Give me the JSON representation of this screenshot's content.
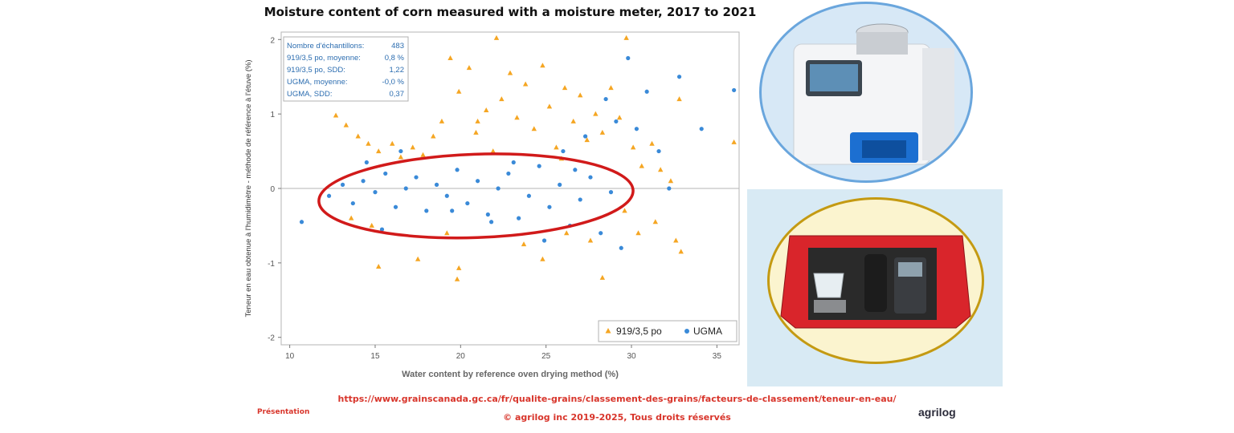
{
  "header": {
    "title": "Moisture content of corn measured with a moisture meter, 2017 to 2021"
  },
  "chart_data": {
    "type": "scatter",
    "title": "Moisture content of corn measured with a moisture meter, 2017 to 2021",
    "xlabel": "Water content by reference oven drying method (%)",
    "ylabel": "Teneur en eau obtenue à l'humidimètre - méthode de référence à l'étuve (%)",
    "xlim": [
      9.5,
      36.3
    ],
    "ylim": [
      -2.1,
      2.1
    ],
    "xticks": [
      10,
      15,
      20,
      25,
      30,
      35
    ],
    "yticks": [
      -2,
      -1,
      0,
      1,
      2
    ],
    "grid": false,
    "legend_position": "bottom-right",
    "series": [
      {
        "name": "919/3,5 po",
        "marker": "triangle",
        "color": "#f5a623",
        "points": [
          [
            12.7,
            0.98
          ],
          [
            13.3,
            0.85
          ],
          [
            14.0,
            0.7
          ],
          [
            14.6,
            0.6
          ],
          [
            15.2,
            0.5
          ],
          [
            16.0,
            0.6
          ],
          [
            16.5,
            0.42
          ],
          [
            17.2,
            0.55
          ],
          [
            17.8,
            0.45
          ],
          [
            18.4,
            0.7
          ],
          [
            18.9,
            0.9
          ],
          [
            19.4,
            1.75
          ],
          [
            19.9,
            1.3
          ],
          [
            20.5,
            1.62
          ],
          [
            20.9,
            0.75
          ],
          [
            21.5,
            1.05
          ],
          [
            21.9,
            0.5
          ],
          [
            22.4,
            1.2
          ],
          [
            22.9,
            1.55
          ],
          [
            23.3,
            0.95
          ],
          [
            23.8,
            1.4
          ],
          [
            24.3,
            0.8
          ],
          [
            24.8,
            1.65
          ],
          [
            25.2,
            1.1
          ],
          [
            25.6,
            0.55
          ],
          [
            26.1,
            1.35
          ],
          [
            26.6,
            0.9
          ],
          [
            27.0,
            1.25
          ],
          [
            27.4,
            0.65
          ],
          [
            27.9,
            1.0
          ],
          [
            28.3,
            0.75
          ],
          [
            28.8,
            1.35
          ],
          [
            29.3,
            0.95
          ],
          [
            29.7,
            2.02
          ],
          [
            30.1,
            0.55
          ],
          [
            30.6,
            0.3
          ],
          [
            31.2,
            0.6
          ],
          [
            31.7,
            0.25
          ],
          [
            32.3,
            0.1
          ],
          [
            32.8,
            1.2
          ],
          [
            36.0,
            0.62
          ],
          [
            22.1,
            2.02
          ],
          [
            15.2,
            -1.05
          ],
          [
            17.5,
            -0.95
          ],
          [
            19.9,
            -1.07
          ],
          [
            19.8,
            -1.22
          ],
          [
            13.6,
            -0.4
          ],
          [
            14.8,
            -0.5
          ],
          [
            19.2,
            -0.6
          ],
          [
            23.7,
            -0.75
          ],
          [
            24.8,
            -0.95
          ],
          [
            26.2,
            -0.6
          ],
          [
            27.6,
            -0.7
          ],
          [
            28.3,
            -1.2
          ],
          [
            29.6,
            -0.3
          ],
          [
            30.4,
            -0.6
          ],
          [
            31.4,
            -0.45
          ],
          [
            32.6,
            -0.7
          ],
          [
            32.9,
            -0.85
          ],
          [
            21.0,
            0.9
          ],
          [
            25.9,
            0.4
          ]
        ]
      },
      {
        "name": "UGMA",
        "marker": "circle",
        "color": "#3a8ad8",
        "points": [
          [
            10.7,
            -0.45
          ],
          [
            12.3,
            -0.1
          ],
          [
            13.1,
            0.05
          ],
          [
            13.7,
            -0.2
          ],
          [
            14.3,
            0.1
          ],
          [
            15.0,
            -0.05
          ],
          [
            15.6,
            0.2
          ],
          [
            16.2,
            -0.25
          ],
          [
            16.8,
            0.0
          ],
          [
            17.4,
            0.15
          ],
          [
            18.0,
            -0.3
          ],
          [
            18.6,
            0.05
          ],
          [
            19.2,
            -0.1
          ],
          [
            19.8,
            0.25
          ],
          [
            20.4,
            -0.2
          ],
          [
            21.0,
            0.1
          ],
          [
            21.6,
            -0.35
          ],
          [
            22.2,
            0.0
          ],
          [
            22.8,
            0.2
          ],
          [
            23.4,
            -0.4
          ],
          [
            24.0,
            -0.1
          ],
          [
            24.6,
            0.3
          ],
          [
            25.2,
            -0.25
          ],
          [
            25.8,
            0.05
          ],
          [
            26.4,
            -0.5
          ],
          [
            27.0,
            -0.15
          ],
          [
            27.6,
            0.15
          ],
          [
            28.2,
            -0.6
          ],
          [
            28.8,
            -0.05
          ],
          [
            29.4,
            -0.8
          ],
          [
            29.8,
            1.75
          ],
          [
            30.3,
            0.8
          ],
          [
            30.9,
            1.3
          ],
          [
            31.6,
            0.5
          ],
          [
            32.2,
            0.0
          ],
          [
            32.8,
            1.5
          ],
          [
            34.1,
            0.8
          ],
          [
            36.0,
            1.32
          ],
          [
            29.1,
            0.9
          ],
          [
            28.5,
            1.2
          ],
          [
            27.3,
            0.7
          ],
          [
            26.0,
            0.5
          ],
          [
            16.5,
            0.5
          ],
          [
            24.9,
            -0.7
          ],
          [
            21.8,
            -0.45
          ],
          [
            19.5,
            -0.3
          ],
          [
            15.4,
            -0.55
          ],
          [
            14.5,
            0.35
          ],
          [
            23.1,
            0.35
          ],
          [
            26.7,
            0.25
          ]
        ]
      }
    ],
    "annotation_box": [
      {
        "label": "Nombre d'échantillons:",
        "value": "483"
      },
      {
        "label": "919/3,5 po, moyenne:",
        "value": "0,8 %"
      },
      {
        "label": "919/3,5 po, SDD:",
        "value": "1,22"
      },
      {
        "label": "UGMA, moyenne:",
        "value": "-0,0 %"
      },
      {
        "label": "UGMA, SDD:",
        "value": "0,37"
      }
    ],
    "highlight_ellipse": {
      "cx": 20.9,
      "cy": -0.1,
      "rx": 9.2,
      "ry": 0.56,
      "color": "#d11a1a"
    }
  },
  "footer": {
    "url": "https://www.grainscanada.gc.ca/fr/qualite-grains/classement-des-grains/facteurs-de-classement/teneur-en-eau/",
    "copyright": "© agrilog inc 2019-2025, Tous droits réservés",
    "presentation": "Présentation",
    "brand": "agrilog"
  },
  "colors": {
    "accent": "#d8352b",
    "ellipse": "#d11a1a",
    "series1": "#f5a623",
    "series2": "#3a8ad8"
  }
}
